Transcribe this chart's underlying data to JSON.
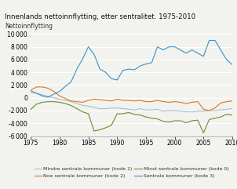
{
  "title": "Innenlands nettoinnflytting, etter sentralitet. 1975-2010",
  "ylabel": "Nettoinnflytting",
  "years": [
    1975,
    1976,
    1977,
    1978,
    1979,
    1980,
    1981,
    1982,
    1983,
    1984,
    1985,
    1986,
    1987,
    1988,
    1989,
    1990,
    1991,
    1992,
    1993,
    1994,
    1995,
    1996,
    1997,
    1998,
    1999,
    2000,
    2001,
    2002,
    2003,
    2004,
    2005,
    2006,
    2007,
    2008,
    2009,
    2010
  ],
  "kode1": [
    800,
    700,
    500,
    200,
    0,
    -200,
    -400,
    -600,
    -900,
    -1200,
    -1300,
    -1500,
    -1700,
    -1700,
    -1600,
    -1600,
    -1700,
    -1800,
    -1900,
    -1700,
    -1900,
    -1900,
    -1800,
    -2100,
    -2000,
    -2000,
    -2100,
    -2200,
    -2200,
    -2100,
    -2100,
    -2000,
    -2000,
    -1900,
    -1800,
    -1700
  ],
  "kode2": [
    1200,
    1700,
    1700,
    1500,
    1000,
    300,
    -100,
    -500,
    -600,
    -700,
    -400,
    -200,
    -300,
    -400,
    -500,
    -200,
    -400,
    -400,
    -500,
    -400,
    -600,
    -600,
    -400,
    -600,
    -700,
    -600,
    -700,
    -900,
    -700,
    -600,
    -1800,
    -2000,
    -1600,
    -800,
    -600,
    -500
  ],
  "kode0": [
    -1800,
    -1000,
    -700,
    -600,
    -600,
    -700,
    -900,
    -1200,
    -1700,
    -2200,
    -2500,
    -5200,
    -5000,
    -4700,
    -4300,
    -2500,
    -2500,
    -2300,
    -2600,
    -2700,
    -3000,
    -3200,
    -3300,
    -3700,
    -3800,
    -3600,
    -3600,
    -3900,
    -3600,
    -3500,
    -5500,
    -3400,
    -3200,
    -3000,
    -2600,
    -2700
  ],
  "kode3": [
    1100,
    700,
    300,
    100,
    600,
    1000,
    1800,
    2500,
    4500,
    6100,
    8000,
    6800,
    4500,
    4000,
    3000,
    2800,
    4300,
    4500,
    4400,
    5000,
    5300,
    5500,
    8000,
    7500,
    8000,
    8000,
    7500,
    7000,
    7500,
    7000,
    6500,
    9000,
    9000,
    7500,
    6000,
    5200
  ],
  "color_kode1": "#a8bfd0",
  "color_kode2": "#d97820",
  "color_kode0": "#6a8c30",
  "color_kode3": "#3a90c8",
  "legend_kode1": "Mindre sentrale kommuner (kode 1)",
  "legend_kode2": "Noe sentrale kommuner (kode 2)",
  "legend_kode0": "Minst sentrale kommuner (kode 0)",
  "legend_kode3": "Sentrale kommuner (kode 3)",
  "ylim": [
    -6000,
    10000
  ],
  "yticks": [
    -6000,
    -4000,
    -2000,
    0,
    2000,
    4000,
    6000,
    8000,
    10000
  ],
  "xticks": [
    1975,
    1980,
    1985,
    1990,
    1995,
    2000,
    2005,
    2010
  ],
  "background_color": "#f2f2ee",
  "grid_color": "#ffffff"
}
